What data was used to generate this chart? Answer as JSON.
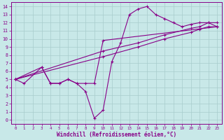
{
  "bg_color": "#c8e8e8",
  "grid_color": "#a8cccc",
  "line_color": "#880088",
  "xlabel": "Windchill (Refroidissement éolien,°C)",
  "xlim": [
    -0.5,
    23.5
  ],
  "ylim": [
    -0.5,
    14.5
  ],
  "xticks": [
    0,
    1,
    2,
    3,
    4,
    5,
    6,
    7,
    8,
    9,
    10,
    11,
    12,
    13,
    14,
    15,
    16,
    17,
    18,
    19,
    20,
    21,
    22,
    23
  ],
  "yticks": [
    0,
    1,
    2,
    3,
    4,
    5,
    6,
    7,
    8,
    9,
    10,
    11,
    12,
    13,
    14
  ],
  "line1_x": [
    0,
    1,
    3,
    4,
    5,
    6,
    7,
    8,
    9,
    10,
    11,
    12,
    13,
    14,
    15,
    16,
    17,
    18,
    19,
    20,
    21,
    22,
    23
  ],
  "line1_y": [
    5,
    4.5,
    6.5,
    4.5,
    4.5,
    5.0,
    4.5,
    3.5,
    0.2,
    1.2,
    7.2,
    9.5,
    13.0,
    13.7,
    14.0,
    13.0,
    12.5,
    12.0,
    11.5,
    11.8,
    12.0,
    12.0,
    11.5
  ],
  "line2_x": [
    0,
    3,
    4,
    5,
    6,
    7,
    8,
    9,
    10,
    23
  ],
  "line2_y": [
    5,
    6.5,
    4.5,
    4.5,
    5.0,
    4.5,
    4.5,
    4.5,
    9.8,
    11.5
  ],
  "line3_x": [
    0,
    10,
    14,
    17,
    20,
    21,
    22,
    23
  ],
  "line3_y": [
    5,
    7.8,
    9.0,
    10.0,
    10.8,
    11.2,
    11.5,
    11.5
  ],
  "line4_x": [
    0,
    10,
    14,
    17,
    20,
    21,
    22,
    23
  ],
  "line4_y": [
    5,
    8.5,
    9.5,
    10.5,
    11.3,
    11.5,
    12.0,
    12.0
  ]
}
